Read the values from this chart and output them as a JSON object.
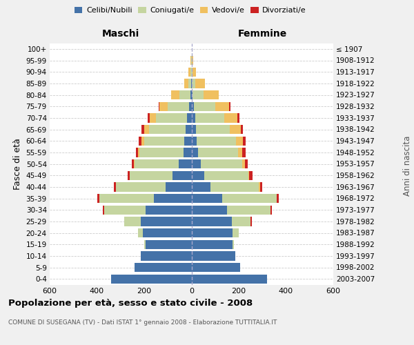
{
  "age_groups": [
    "0-4",
    "5-9",
    "10-14",
    "15-19",
    "20-24",
    "25-29",
    "30-34",
    "35-39",
    "40-44",
    "45-49",
    "50-54",
    "55-59",
    "60-64",
    "65-69",
    "70-74",
    "75-79",
    "80-84",
    "85-89",
    "90-94",
    "95-99",
    "100+"
  ],
  "birth_years": [
    "2003-2007",
    "1998-2002",
    "1993-1997",
    "1988-1992",
    "1983-1987",
    "1978-1982",
    "1973-1977",
    "1968-1972",
    "1963-1967",
    "1958-1962",
    "1953-1957",
    "1948-1952",
    "1943-1947",
    "1938-1942",
    "1933-1937",
    "1928-1932",
    "1923-1927",
    "1918-1922",
    "1913-1917",
    "1908-1912",
    "≤ 1907"
  ],
  "colors": {
    "celibe": "#4472a8",
    "coniugato": "#c5d5a0",
    "vedovo": "#f0c060",
    "divorziato": "#cc2222"
  },
  "male": {
    "celibe": [
      340,
      240,
      215,
      195,
      205,
      215,
      195,
      160,
      110,
      80,
      55,
      35,
      30,
      25,
      20,
      10,
      5,
      2,
      0,
      0,
      0
    ],
    "coniugato": [
      0,
      0,
      0,
      5,
      20,
      70,
      175,
      230,
      210,
      180,
      185,
      185,
      170,
      155,
      130,
      90,
      45,
      12,
      5,
      2,
      0
    ],
    "vedovo": [
      0,
      0,
      0,
      0,
      0,
      0,
      0,
      0,
      0,
      0,
      5,
      6,
      12,
      20,
      28,
      35,
      35,
      18,
      8,
      2,
      0
    ],
    "divorziato": [
      0,
      0,
      0,
      0,
      0,
      0,
      5,
      8,
      8,
      10,
      8,
      10,
      12,
      12,
      8,
      5,
      0,
      0,
      0,
      0,
      0
    ]
  },
  "female": {
    "nubile": [
      320,
      205,
      185,
      175,
      175,
      170,
      150,
      130,
      80,
      55,
      40,
      28,
      22,
      18,
      15,
      10,
      5,
      2,
      0,
      0,
      0
    ],
    "coniugata": [
      0,
      0,
      0,
      5,
      25,
      80,
      185,
      230,
      205,
      185,
      175,
      170,
      165,
      145,
      125,
      90,
      45,
      15,
      5,
      2,
      0
    ],
    "vedova": [
      0,
      0,
      0,
      0,
      0,
      0,
      0,
      0,
      5,
      5,
      12,
      18,
      30,
      45,
      55,
      60,
      65,
      40,
      15,
      5,
      2
    ],
    "divorziata": [
      0,
      0,
      0,
      0,
      0,
      5,
      5,
      10,
      10,
      12,
      10,
      12,
      12,
      10,
      8,
      5,
      0,
      0,
      0,
      0,
      0
    ]
  },
  "xlim": 600,
  "title_main": "Popolazione per età, sesso e stato civile - 2008",
  "title_sub": "COMUNE DI SUSEGANA (TV) - Dati ISTAT 1° gennaio 2008 - Elaborazione TUTTITALIA.IT",
  "xlabel_left": "Maschi",
  "xlabel_right": "Femmine",
  "ylabel_left": "Fasce di età",
  "ylabel_right": "Anni di nascita",
  "bg_color": "#f0f0f0",
  "plot_bg": "#ffffff",
  "grid_color": "#cccccc"
}
